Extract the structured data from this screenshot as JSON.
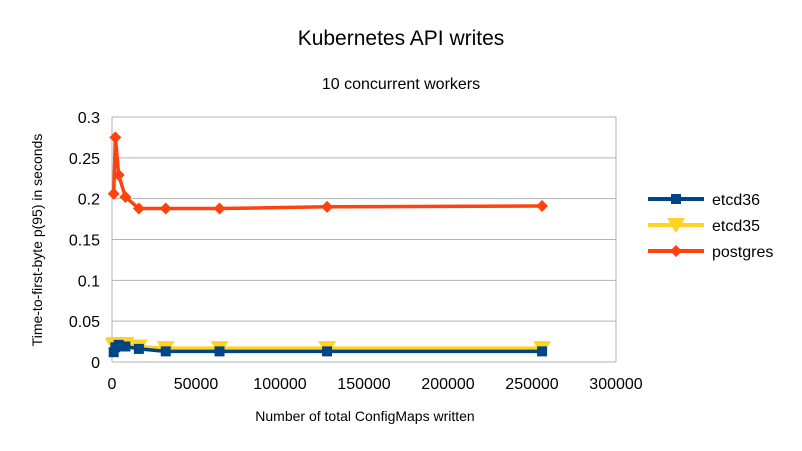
{
  "chart_data": {
    "type": "line",
    "title": "Kubernetes API writes",
    "subtitle": "10 concurrent workers",
    "xlabel": "Number of total ConfigMaps written",
    "ylabel": "Time-to-first-byte p(95) in seconds",
    "xlim": [
      0,
      300000
    ],
    "ylim": [
      0,
      0.3
    ],
    "x_ticks": [
      "0",
      "50000",
      "100000",
      "150000",
      "200000",
      "250000",
      "300000"
    ],
    "y_ticks": [
      "0",
      "0.05",
      "0.1",
      "0.15",
      "0.2",
      "0.25",
      "0.3"
    ],
    "grid": "horizontal",
    "legend_position": "right",
    "series": [
      {
        "name": "etcd36",
        "color": "#004586",
        "marker": "square",
        "x": [
          1000,
          2000,
          4000,
          8000,
          16000,
          32000,
          64000,
          128000,
          256000
        ],
        "y": [
          0.012,
          0.018,
          0.021,
          0.019,
          0.016,
          0.013,
          0.013,
          0.013,
          0.013
        ]
      },
      {
        "name": "etcd35",
        "color": "#ffd320",
        "marker": "triangle-down",
        "x": [
          1000,
          2000,
          4000,
          8000,
          16000,
          32000,
          64000,
          128000,
          256000
        ],
        "y": [
          0.021,
          0.022,
          0.022,
          0.022,
          0.019,
          0.017,
          0.017,
          0.017,
          0.017
        ]
      },
      {
        "name": "postgres",
        "color": "#ff420e",
        "marker": "diamond",
        "x": [
          1000,
          2000,
          4000,
          8000,
          16000,
          32000,
          64000,
          128000,
          256000
        ],
        "y": [
          0.206,
          0.275,
          0.229,
          0.202,
          0.188,
          0.188,
          0.188,
          0.19,
          0.191
        ]
      }
    ]
  }
}
